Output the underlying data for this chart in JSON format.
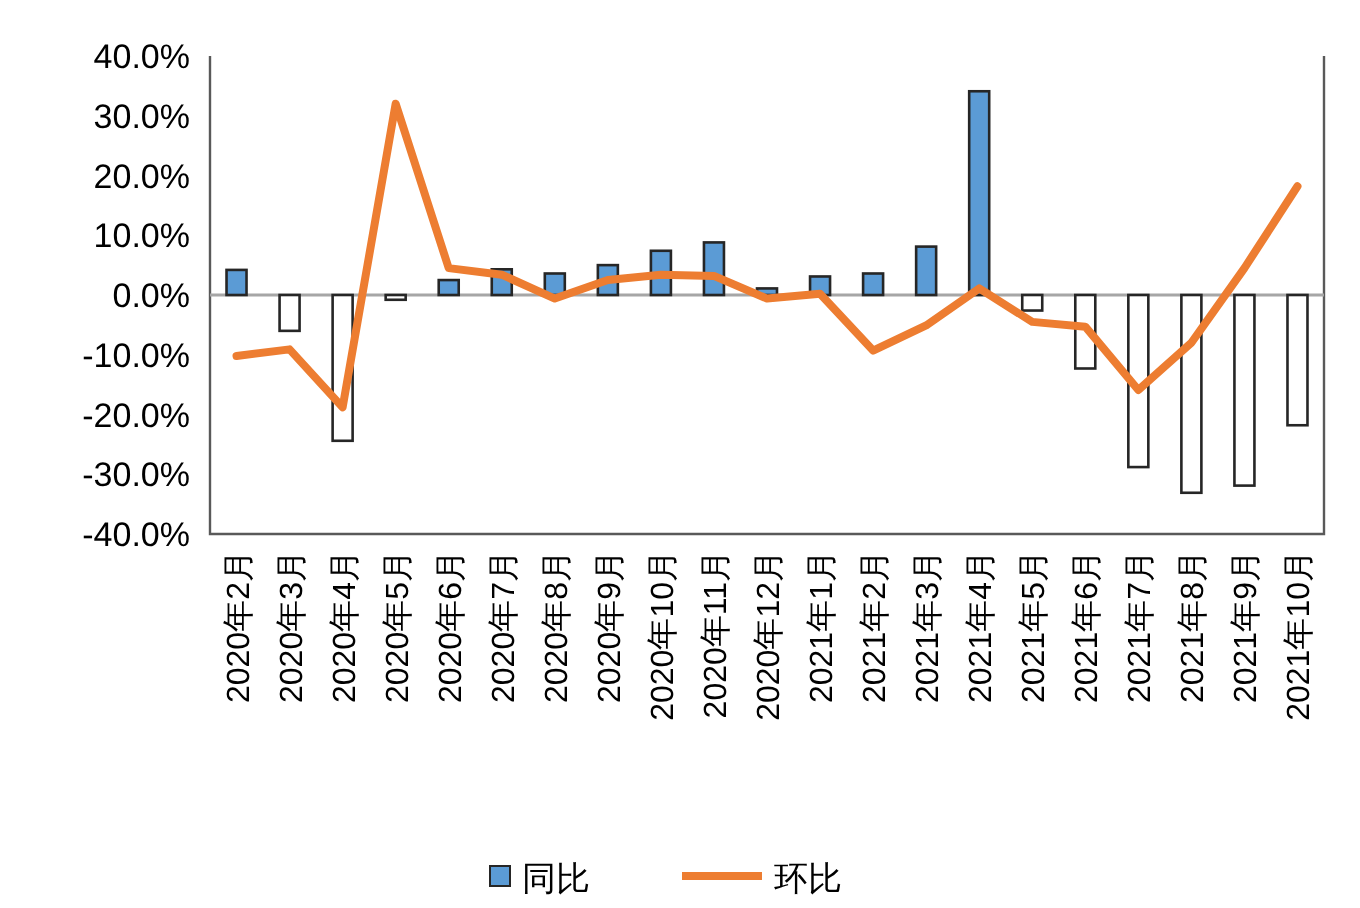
{
  "chart_data": {
    "type": "bar",
    "categories": [
      "2020年2月",
      "2020年3月",
      "2020年4月",
      "2020年5月",
      "2020年6月",
      "2020年7月",
      "2020年8月",
      "2020年9月",
      "2020年10月",
      "2020年11月",
      "2020年12月",
      "2021年1月",
      "2021年2月",
      "2021年3月",
      "2021年4月",
      "2021年5月",
      "2021年6月",
      "2021年7月",
      "2021年8月",
      "2021年9月",
      "2021年10月"
    ],
    "series": [
      {
        "name": "同比",
        "color": "#5b9bd5",
        "colors": [
          "#5b9bd5",
          "#ffffff",
          "#ffffff",
          "#ffffff",
          "#5b9bd5",
          "#5b9bd5",
          "#5b9bd5",
          "#5b9bd5",
          "#5b9bd5",
          "#5b9bd5",
          "#5b9bd5",
          "#5b9bd5",
          "#5b9bd5",
          "#5b9bd5",
          "#5b9bd5",
          "#ffffff",
          "#ffffff",
          "#ffffff",
          "#ffffff",
          "#ffffff",
          "#ffffff"
        ],
        "values": [
          4.2,
          -6.0,
          -24.4,
          -0.8,
          2.5,
          4.3,
          3.6,
          5.0,
          7.4,
          8.8,
          1.1,
          3.1,
          3.6,
          8.1,
          34.1,
          -2.6,
          -12.3,
          -28.8,
          -33.1,
          -31.9,
          -21.8
        ]
      },
      {
        "name": "环比",
        "type": "line",
        "color": "#ed7d31",
        "values": [
          -10.2,
          -9.1,
          -18.8,
          32.0,
          4.5,
          3.4,
          -0.6,
          2.5,
          3.4,
          3.2,
          -0.6,
          0.2,
          -9.3,
          -5.1,
          1.1,
          -4.5,
          -5.3,
          -15.9,
          -8.0,
          4.5,
          18.2
        ]
      }
    ],
    "ylim": [
      -40,
      40
    ],
    "yticks": [
      {
        "value": -40,
        "label": "-40.0%"
      },
      {
        "value": -30,
        "label": "-30.0%"
      },
      {
        "value": -20,
        "label": "-20.0%"
      },
      {
        "value": -10,
        "label": "-10.0%"
      },
      {
        "value": 0,
        "label": "0.0%"
      },
      {
        "value": 10,
        "label": "10.0%"
      },
      {
        "value": 20,
        "label": "20.0%"
      },
      {
        "value": 30,
        "label": "30.0%"
      },
      {
        "value": 40,
        "label": "40.0%"
      }
    ],
    "legend": "bottom",
    "marker": "none"
  }
}
